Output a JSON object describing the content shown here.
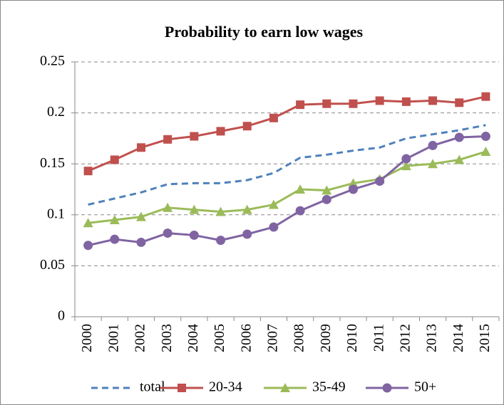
{
  "chart_data": {
    "type": "line",
    "title": "Probability to earn low wages",
    "categories": [
      "2000",
      "2001",
      "2002",
      "2003",
      "2004",
      "2005",
      "2006",
      "2007",
      "2008",
      "2009",
      "2010",
      "2011",
      "2012",
      "2013",
      "2014",
      "2015"
    ],
    "series": [
      {
        "name": "total",
        "color": "#4f81bd",
        "dash": true,
        "marker": "none",
        "values": [
          0.11,
          0.116,
          0.122,
          0.13,
          0.131,
          0.131,
          0.134,
          0.141,
          0.156,
          0.159,
          0.163,
          0.166,
          0.175,
          0.179,
          0.183,
          0.188
        ]
      },
      {
        "name": "20-34",
        "color": "#c0504d",
        "dash": false,
        "marker": "square",
        "values": [
          0.143,
          0.154,
          0.166,
          0.174,
          0.177,
          0.182,
          0.187,
          0.195,
          0.208,
          0.209,
          0.209,
          0.212,
          0.211,
          0.212,
          0.21,
          0.216
        ]
      },
      {
        "name": "35-49",
        "color": "#9bbb59",
        "dash": false,
        "marker": "triangle",
        "values": [
          0.092,
          0.095,
          0.098,
          0.107,
          0.105,
          0.103,
          0.105,
          0.11,
          0.125,
          0.124,
          0.131,
          0.135,
          0.148,
          0.15,
          0.154,
          0.162
        ]
      },
      {
        "name": "50+",
        "color": "#8064a2",
        "dash": false,
        "marker": "circle",
        "values": [
          0.07,
          0.076,
          0.073,
          0.082,
          0.08,
          0.075,
          0.081,
          0.088,
          0.104,
          0.115,
          0.125,
          0.133,
          0.155,
          0.168,
          0.176,
          0.177
        ]
      }
    ],
    "ylim": [
      0,
      0.25
    ],
    "yticks": [
      0,
      0.05,
      0.1,
      0.15,
      0.2,
      0.25
    ],
    "grid": true,
    "legend": "bottom"
  }
}
